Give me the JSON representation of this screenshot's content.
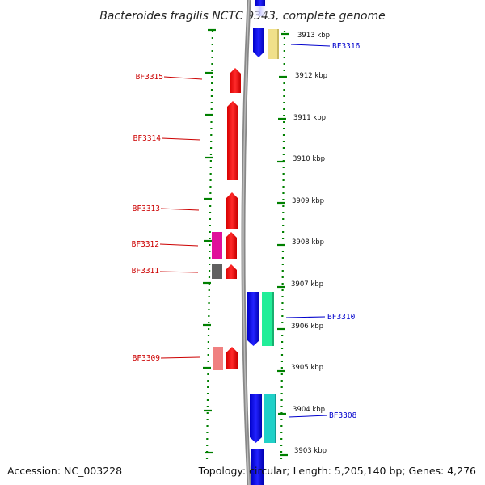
{
  "title": "Bacteroides fragilis NCTC 9343, complete genome",
  "footer": {
    "accession": "Accession: NC_003228",
    "summary": "Topology: circular; Length: 5,205,140 bp; Genes: 4,276"
  },
  "scale": {
    "unit": "kbp",
    "labels": [
      "3913 kbp",
      "3912 kbp",
      "3911 kbp",
      "3910 kbp",
      "3909 kbp",
      "3908 kbp",
      "3907 kbp",
      "3906 kbp",
      "3905 kbp",
      "3904 kbp",
      "3903 kbp"
    ]
  },
  "genes": [
    {
      "id": "BF3316",
      "strand": "reverse",
      "label_color": "#0000cc"
    },
    {
      "id": "BF3315",
      "strand": "forward",
      "label_color": "#cc0000"
    },
    {
      "id": "BF3314",
      "strand": "forward",
      "label_color": "#cc0000"
    },
    {
      "id": "BF3313",
      "strand": "forward",
      "label_color": "#cc0000"
    },
    {
      "id": "BF3312",
      "strand": "forward",
      "label_color": "#cc0000"
    },
    {
      "id": "BF3311",
      "strand": "forward",
      "label_color": "#cc0000"
    },
    {
      "id": "BF3310",
      "strand": "reverse",
      "label_color": "#0000cc"
    },
    {
      "id": "BF3309",
      "strand": "forward",
      "label_color": "#cc0000"
    },
    {
      "id": "BF3308",
      "strand": "reverse",
      "label_color": "#0000cc"
    }
  ],
  "colors": {
    "forward": "#ff0000",
    "reverse": "#0000ff",
    "backbone": "#777777",
    "ticks": "#008000",
    "cog_yellow": "#f0e08a",
    "cog_magenta": "#e0109a",
    "cog_gray": "#606060",
    "cog_pink": "#f08080",
    "cog_spring": "#22ee99",
    "cog_teal": "#20d0c8"
  }
}
